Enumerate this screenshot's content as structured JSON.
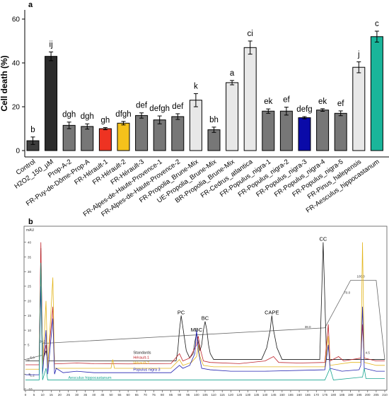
{
  "panels": {
    "a": "a",
    "b": "b"
  },
  "chart_data": [
    {
      "type": "bar",
      "panel": "a",
      "ylabel": "Cell death (%)",
      "ylim": [
        0,
        60
      ],
      "yticks": [
        0,
        20,
        40,
        60
      ],
      "categories": [
        "Control",
        "H2O2_150_µM",
        "Prop-A-2",
        "FR-Puy-de-Dôme-Prop-A",
        "FR-Hérault-1",
        "FR-Hérault-2",
        "FR-Hérault-3",
        "FR-Alpes-de-Haute-Provence-1",
        "FR-Alpes-de-Haute-Provence-2",
        "FR-Propolia_Brune-Mix",
        "UE-Propolia_Brune-Mix",
        "BR-Propolia_Brune-Mix",
        "FR-Cedrus_atlantica",
        "FR-Populus_nigra-1",
        "FR-Populus_nigra-2",
        "FR-Populus_nigra-3",
        "FR-Populus_nigra-4",
        "FR-Populus_nigra-5",
        "FR-Pinus_halepensis",
        "FR-Aesculus_hippocastanum"
      ],
      "values": [
        4.5,
        43,
        11.5,
        11,
        10,
        12.5,
        16,
        14,
        15.5,
        23,
        9.5,
        31,
        47,
        18,
        18,
        15,
        18.5,
        17,
        38,
        52
      ],
      "errors": [
        1.7,
        2,
        1.5,
        1.2,
        0.5,
        0.8,
        1.2,
        1.8,
        1.3,
        3,
        1.2,
        1,
        3,
        1,
        1.8,
        0.5,
        0.6,
        1.1,
        2.5,
        2.5
      ],
      "letters": [
        "b",
        "ij",
        "dgh",
        "dgh",
        "gh",
        "dfgh",
        "def",
        "defgh",
        "def",
        "k",
        "bh",
        "a",
        "ci",
        "ek",
        "ef",
        "defg",
        "ek",
        "ef",
        "j",
        "c"
      ],
      "bar_colors": [
        "#3d3d3d",
        "#2b2b2b",
        "#777777",
        "#777777",
        "#ee3322",
        "#f5c21b",
        "#777777",
        "#777777",
        "#777777",
        "#e8e8e8",
        "#777777",
        "#e8e8e8",
        "#e8e8e8",
        "#777777",
        "#777777",
        "#0a0aa8",
        "#777777",
        "#777777",
        "#e8e8e8",
        "#1ab59a"
      ]
    },
    {
      "type": "line",
      "panel": "b",
      "ylabel": "mAU",
      "ylim": [
        -10,
        45
      ],
      "yticks": [
        -10,
        -5,
        0,
        5,
        10,
        15,
        20,
        25,
        30,
        35,
        40
      ],
      "xlim": [
        0,
        210
      ],
      "xticks": [
        0,
        5,
        10,
        15,
        20,
        25,
        30,
        35,
        40,
        45,
        50,
        55,
        60,
        65,
        70,
        75,
        80,
        85,
        90,
        95,
        100,
        105,
        110,
        115,
        120,
        125,
        130,
        135,
        140,
        145,
        150,
        155,
        160,
        165,
        170,
        175,
        180,
        185,
        190,
        195,
        200,
        205,
        210
      ],
      "gradient": {
        "x": [
          0,
          10,
          10,
          175,
          190,
          205,
          210
        ],
        "y": [
          0,
          1.5,
          5.5,
          10.8,
          27,
          27,
          0
        ],
        "labels": [
          {
            "text": "20.0",
            "x": 10,
            "y": 5.8
          },
          {
            "text": "38.0",
            "x": 165,
            "y": 10.8
          },
          {
            "text": "70.0",
            "x": 188,
            "y": 22.5
          },
          {
            "text": "100.0",
            "x": 196,
            "y": 28
          },
          {
            "text": "4.5",
            "x": 200,
            "y": 2
          },
          {
            "text": "5.0",
            "x": 4,
            "y": 0.2
          },
          {
            "text": "1.2",
            "x": 4,
            "y": -5.8
          }
        ]
      },
      "series": [
        {
          "name": "Standards",
          "color": "#1a1a1a",
          "points": [
            [
              0,
              -0.5
            ],
            [
              8,
              -0.5
            ],
            [
              9,
              38
            ],
            [
              10,
              -0.5
            ],
            [
              12,
              3
            ],
            [
              13,
              -0.5
            ],
            [
              40,
              -0.5
            ],
            [
              50,
              -0.5
            ],
            [
              88,
              -0.5
            ],
            [
              89,
              3
            ],
            [
              90,
              10
            ],
            [
              91,
              15
            ],
            [
              92,
              11
            ],
            [
              94,
              3
            ],
            [
              96,
              0.5
            ],
            [
              98,
              2
            ],
            [
              99,
              6
            ],
            [
              100,
              9
            ],
            [
              101,
              6
            ],
            [
              102,
              3
            ],
            [
              103,
              5
            ],
            [
              104,
              10
            ],
            [
              105,
              13
            ],
            [
              106,
              10
            ],
            [
              107,
              5
            ],
            [
              108,
              2
            ],
            [
              110,
              0
            ],
            [
              138,
              0
            ],
            [
              141,
              4
            ],
            [
              143,
              10
            ],
            [
              144,
              15
            ],
            [
              145,
              10
            ],
            [
              147,
              4
            ],
            [
              150,
              0
            ],
            [
              172,
              0
            ],
            [
              173,
              20
            ],
            [
              174,
              40
            ],
            [
              175,
              20
            ],
            [
              176,
              0
            ],
            [
              210,
              0
            ]
          ]
        },
        {
          "name": "Hérault-1",
          "color": "#c0242b",
          "points": [
            [
              0,
              -1.8
            ],
            [
              8,
              -1.8
            ],
            [
              9,
              40
            ],
            [
              10,
              -1.5
            ],
            [
              12,
              5
            ],
            [
              13,
              -1.5
            ],
            [
              16,
              18
            ],
            [
              17,
              -1.5
            ],
            [
              30,
              -1.2
            ],
            [
              40,
              -1.4
            ],
            [
              60,
              -1.5
            ],
            [
              85,
              -1.4
            ],
            [
              90,
              2
            ],
            [
              92,
              -0.5
            ],
            [
              96,
              0.5
            ],
            [
              100,
              5
            ],
            [
              101,
              8
            ],
            [
              102,
              4
            ],
            [
              104,
              -0.5
            ],
            [
              108,
              -1
            ],
            [
              125,
              -1.4
            ],
            [
              140,
              -0.5
            ],
            [
              145,
              1
            ],
            [
              148,
              -1
            ],
            [
              160,
              -1.2
            ],
            [
              175,
              -1
            ],
            [
              177,
              12
            ],
            [
              178,
              -0.5
            ],
            [
              183,
              1
            ],
            [
              186,
              -0.5
            ],
            [
              196,
              0.5
            ],
            [
              197,
              12
            ],
            [
              198,
              0.5
            ],
            [
              205,
              -0.5
            ],
            [
              210,
              -0.5
            ]
          ]
        },
        {
          "name": "Hérault-2",
          "color": "#e3b51c",
          "points": [
            [
              0,
              -3.3
            ],
            [
              8,
              -3.3
            ],
            [
              9,
              30
            ],
            [
              10,
              -3
            ],
            [
              12,
              20
            ],
            [
              13,
              -3
            ],
            [
              16,
              28
            ],
            [
              17,
              -3
            ],
            [
              30,
              -3
            ],
            [
              50,
              -3
            ],
            [
              51,
              0
            ],
            [
              52,
              -3
            ],
            [
              85,
              -3
            ],
            [
              90,
              0
            ],
            [
              92,
              -2
            ],
            [
              97,
              -1
            ],
            [
              100,
              1
            ],
            [
              101,
              5
            ],
            [
              102,
              1
            ],
            [
              104,
              -2
            ],
            [
              110,
              -2.5
            ],
            [
              140,
              -2.5
            ],
            [
              175,
              -2.5
            ],
            [
              177,
              8
            ],
            [
              178,
              -2
            ],
            [
              190,
              -1
            ],
            [
              196,
              -1
            ],
            [
              197,
              40
            ],
            [
              198,
              -1
            ],
            [
              205,
              -2
            ],
            [
              210,
              -2
            ]
          ]
        },
        {
          "name": "Populus nigra 3",
          "color": "#2222b0",
          "points": [
            [
              0,
              -5.2
            ],
            [
              8,
              -5.2
            ],
            [
              9,
              25
            ],
            [
              10,
              -5
            ],
            [
              12,
              10
            ],
            [
              13,
              -5
            ],
            [
              16,
              14
            ],
            [
              17,
              -5
            ],
            [
              18,
              -3
            ],
            [
              22,
              -4.5
            ],
            [
              30,
              -4
            ],
            [
              40,
              -4.5
            ],
            [
              60,
              -4.5
            ],
            [
              85,
              -4.5
            ],
            [
              90,
              -2
            ],
            [
              92,
              -3
            ],
            [
              96,
              -2
            ],
            [
              99,
              2
            ],
            [
              100,
              10
            ],
            [
              101,
              3
            ],
            [
              103,
              -3
            ],
            [
              108,
              -3.5
            ],
            [
              120,
              -4
            ],
            [
              140,
              -4
            ],
            [
              175,
              -3.5
            ],
            [
              177,
              5
            ],
            [
              178,
              -3
            ],
            [
              185,
              -4
            ],
            [
              195,
              -3.5
            ],
            [
              196,
              -2
            ],
            [
              197,
              18
            ],
            [
              198,
              -3
            ],
            [
              205,
              -4
            ],
            [
              210,
              -4
            ]
          ]
        },
        {
          "name": "Aesculus hippocastanum",
          "color": "#1aa591",
          "points": [
            [
              0,
              -7
            ],
            [
              8,
              -7
            ],
            [
              9,
              33
            ],
            [
              10,
              -7
            ],
            [
              12,
              -3
            ],
            [
              13,
              -7
            ],
            [
              30,
              -7
            ],
            [
              60,
              -7
            ],
            [
              100,
              -7
            ],
            [
              150,
              -7
            ],
            [
              175,
              -7
            ],
            [
              178,
              -3
            ],
            [
              180,
              -7
            ],
            [
              197,
              -6
            ],
            [
              198,
              -3
            ],
            [
              199,
              -6.5
            ],
            [
              210,
              -6.5
            ]
          ]
        }
      ],
      "annotations": [
        {
          "text": "PC",
          "x": 91,
          "y": 15.5
        },
        {
          "text": "MBC",
          "x": 100,
          "y": 9.5
        },
        {
          "text": "BC",
          "x": 105,
          "y": 13.5
        },
        {
          "text": "CAPE",
          "x": 144,
          "y": 15.5
        },
        {
          "text": "CC",
          "x": 174,
          "y": 40.5
        }
      ]
    }
  ]
}
